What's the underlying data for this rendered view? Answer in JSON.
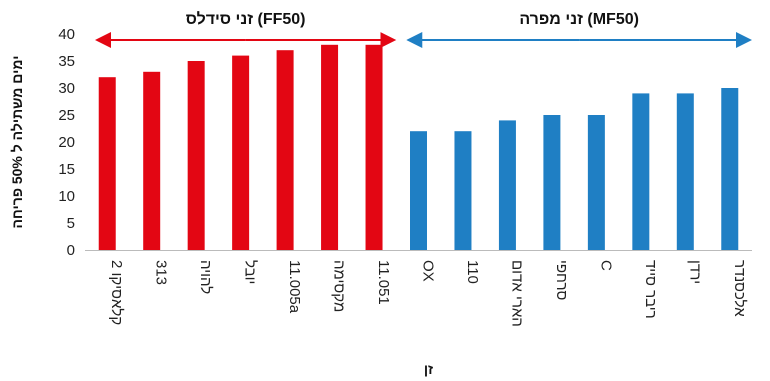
{
  "chart_data": {
    "type": "bar",
    "title": "",
    "xlabel": "זן",
    "ylabel": "ימים משתילה ל 50% פריחה",
    "ylim": [
      0,
      40
    ],
    "yticks": [
      0,
      5,
      10,
      15,
      20,
      25,
      30,
      35,
      40
    ],
    "grid": false,
    "categories": [
      "קלאסיקו 2",
      "313",
      "להויה",
      "יובל",
      "11.005a",
      "מקסימה",
      "11.051",
      "OX",
      "110",
      "הארי אדום",
      "סרחפי",
      "C",
      "ריבר סייד",
      "ירדן",
      "אלכסנדר"
    ],
    "values": [
      32,
      33,
      35,
      36,
      37,
      38,
      38,
      22,
      22,
      24,
      25,
      25,
      29,
      29,
      30
    ],
    "bar_colors": [
      "#e30613",
      "#e30613",
      "#e30613",
      "#e30613",
      "#e30613",
      "#e30613",
      "#e30613",
      "#1f7fc4",
      "#1f7fc4",
      "#1f7fc4",
      "#1f7fc4",
      "#1f7fc4",
      "#1f7fc4",
      "#1f7fc4",
      "#1f7fc4"
    ],
    "groups": [
      {
        "label": "זני סידלס (FF50)",
        "from": 0,
        "to": 6,
        "color": "#e30613"
      },
      {
        "label": "זני מפרה (MF50)",
        "from": 7,
        "to": 14,
        "color": "#1f7fc4"
      }
    ]
  }
}
